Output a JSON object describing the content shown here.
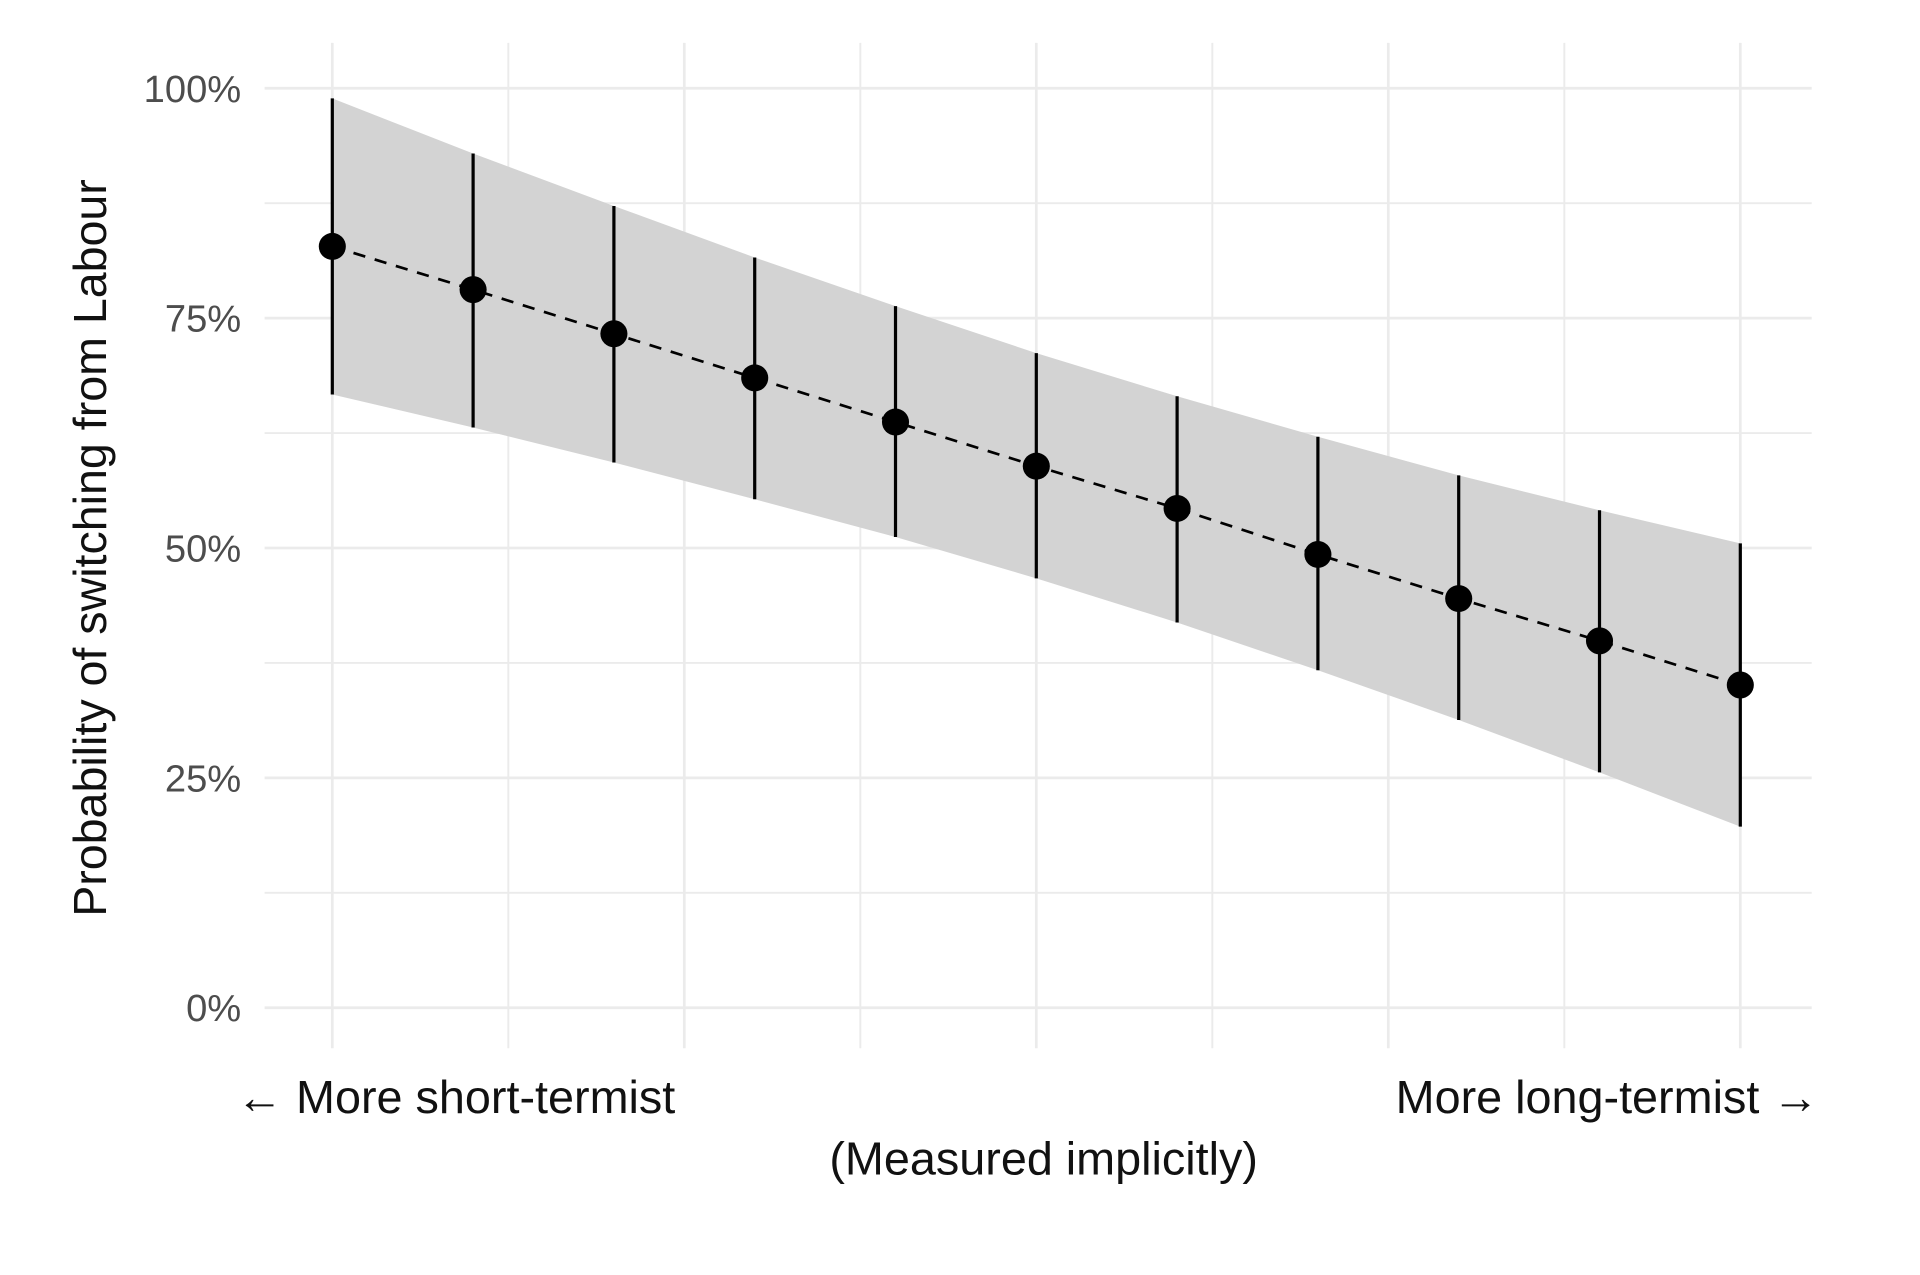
{
  "chart_data": {
    "type": "scatter",
    "title": "",
    "xlabel_left": "← More short-termist",
    "xlabel_right": "More long-termist →",
    "xlabel": "(Measured implicitly)",
    "ylabel": "Probability of switching from Labour",
    "ylim": [
      0,
      100
    ],
    "xlim": [
      0,
      1
    ],
    "y_ticks": [
      0,
      25,
      50,
      75,
      100
    ],
    "y_tick_labels": [
      "0%",
      "25%",
      "50%",
      "75%",
      "100%"
    ],
    "grid": true,
    "x": [
      0,
      0.1,
      0.2,
      0.3,
      0.4,
      0.5,
      0.6,
      0.7,
      0.8,
      0.9,
      1.0
    ],
    "series": [
      {
        "values": [
          82.8,
          78.1,
          73.3,
          68.5,
          63.7,
          58.9,
          54.3,
          49.3,
          44.5,
          39.9,
          35.1
        ],
        "upper": [
          98.9,
          92.9,
          87.2,
          81.6,
          76.3,
          71.2,
          66.5,
          62.1,
          57.9,
          54.1,
          50.5
        ],
        "lower": [
          66.7,
          63.1,
          59.3,
          55.3,
          51.2,
          46.7,
          41.9,
          36.7,
          31.3,
          25.6,
          19.7
        ]
      }
    ],
    "colors": {
      "band": "#d3d3d3",
      "point": "#000000",
      "grid": "#ebebeb"
    }
  }
}
